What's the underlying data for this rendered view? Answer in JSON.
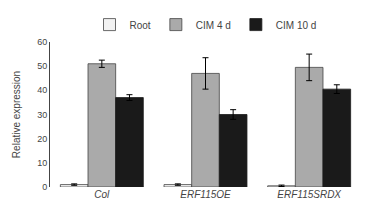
{
  "chart_data": {
    "type": "bar",
    "categories": [
      "Col",
      "ERF115OE",
      "ERF115SRDX"
    ],
    "series": [
      {
        "name": "Root",
        "color": "#f2f2f2",
        "values": [
          1.0,
          1.0,
          0.5
        ],
        "errors": [
          0.3,
          0.3,
          0.3
        ]
      },
      {
        "name": "CIM 4 d",
        "color": "#aaaaaa",
        "values": [
          51.0,
          47.0,
          49.5
        ],
        "errors": [
          1.5,
          6.5,
          5.5
        ]
      },
      {
        "name": "CIM 10 d",
        "color": "#1a1a1a",
        "values": [
          37.0,
          30.0,
          40.5
        ],
        "errors": [
          1.2,
          2.0,
          1.8
        ]
      }
    ],
    "ylabel": "Relative expression",
    "ylim": [
      0,
      60
    ],
    "yticks": [
      0,
      10,
      20,
      30,
      40,
      50,
      60
    ],
    "grid": false,
    "legend": "top"
  }
}
